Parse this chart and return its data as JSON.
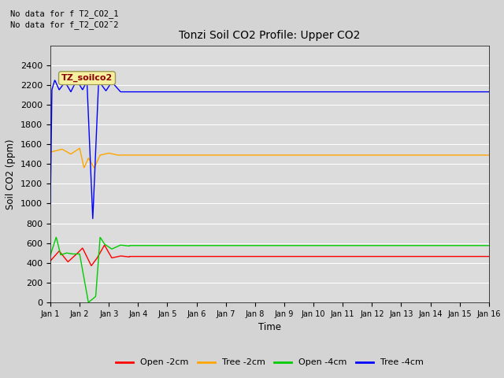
{
  "title": "Tonzi Soil CO2 Profile: Upper CO2",
  "ylabel": "Soil CO2 (ppm)",
  "xlabel": "Time",
  "no_data_text": [
    "No data for f T2_CO2_1",
    "No data for f̲T2̲CO2¯2"
  ],
  "file_label": "TZ_soilco2",
  "ylim": [
    0,
    2600
  ],
  "yticks": [
    0,
    200,
    400,
    600,
    800,
    1000,
    1200,
    1400,
    1600,
    1800,
    2000,
    2200,
    2400
  ],
  "x_labels": [
    "Jan 1",
    "Jan 2",
    "Jan 3",
    "Jan 4",
    "Jan 5",
    "Jan 6",
    "Jan 7",
    "Jan 8",
    "Jan 9",
    "Jan 10",
    "Jan 11",
    "Jan 12",
    "Jan 13",
    "Jan 14",
    "Jan 15",
    "Jan 16"
  ],
  "legend_labels": [
    "Open -2cm",
    "Tree -2cm",
    "Open -4cm",
    "Tree -4cm"
  ],
  "legend_colors": [
    "#ff0000",
    "#ffa500",
    "#00cc00",
    "#0000ff"
  ],
  "bg_color": "#dcdcdc",
  "fig_color": "#d4d4d4",
  "series_colors": {
    "open_2cm": "#ff0000",
    "tree_2cm": "#ffa500",
    "open_4cm": "#00cc00",
    "tree_4cm": "#0000ff"
  },
  "steady": {
    "open_2cm": 465,
    "tree_2cm": 1490,
    "open_4cm": 575,
    "tree_4cm": 2130
  }
}
